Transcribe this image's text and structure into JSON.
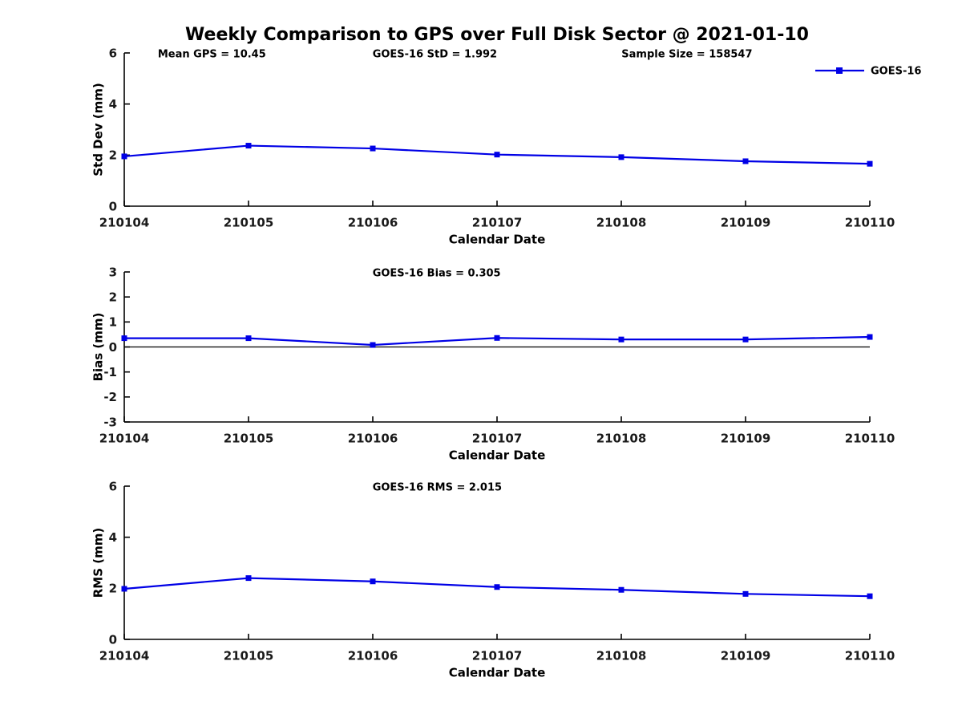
{
  "title": "Weekly Comparison to GPS over Full Disk Sector @ 2021-01-10",
  "colors": {
    "series": "#0000E6",
    "axis": "#000000",
    "tick_text": "#1a1a1a",
    "zero_line": "#000000",
    "background": "#ffffff"
  },
  "chart_data": [
    {
      "type": "line",
      "name": "std-dev",
      "annotations": [
        "Mean GPS = 10.45",
        "GOES-16 StD = 1.992",
        "Sample Size = 158547"
      ],
      "ylabel": "Std Dev (mm)",
      "xlabel": "Calendar Date",
      "categories": [
        "210104",
        "210105",
        "210106",
        "210107",
        "210108",
        "210109",
        "210110"
      ],
      "series": [
        {
          "name": "GOES-16",
          "values": [
            1.95,
            2.37,
            2.26,
            2.02,
            1.92,
            1.76,
            1.66
          ]
        }
      ],
      "ylim": [
        0,
        6
      ],
      "yticks": [
        0,
        2,
        4,
        6
      ],
      "legend": true,
      "zero_line": false,
      "grid": false,
      "legend_position": "top-right"
    },
    {
      "type": "line",
      "name": "bias",
      "annotations": [
        "GOES-16 Bias  = 0.305"
      ],
      "ylabel": "Bias (mm)",
      "xlabel": "Calendar Date",
      "categories": [
        "210104",
        "210105",
        "210106",
        "210107",
        "210108",
        "210109",
        "210110"
      ],
      "series": [
        {
          "name": "GOES-16",
          "values": [
            0.35,
            0.35,
            0.08,
            0.36,
            0.3,
            0.3,
            0.4
          ]
        }
      ],
      "ylim": [
        -3,
        3
      ],
      "yticks": [
        -3,
        -2,
        -1,
        0,
        1,
        2,
        3
      ],
      "legend": false,
      "zero_line": true,
      "grid": false
    },
    {
      "type": "line",
      "name": "rms",
      "annotations": [
        "GOES-16 RMS = 2.015"
      ],
      "ylabel": "RMS (mm)",
      "xlabel": "Calendar Date",
      "categories": [
        "210104",
        "210105",
        "210106",
        "210107",
        "210108",
        "210109",
        "210110"
      ],
      "series": [
        {
          "name": "GOES-16",
          "values": [
            1.98,
            2.4,
            2.27,
            2.05,
            1.94,
            1.78,
            1.69
          ]
        }
      ],
      "ylim": [
        0,
        6
      ],
      "yticks": [
        0,
        2,
        4,
        6
      ],
      "legend": false,
      "zero_line": false,
      "grid": false
    }
  ]
}
